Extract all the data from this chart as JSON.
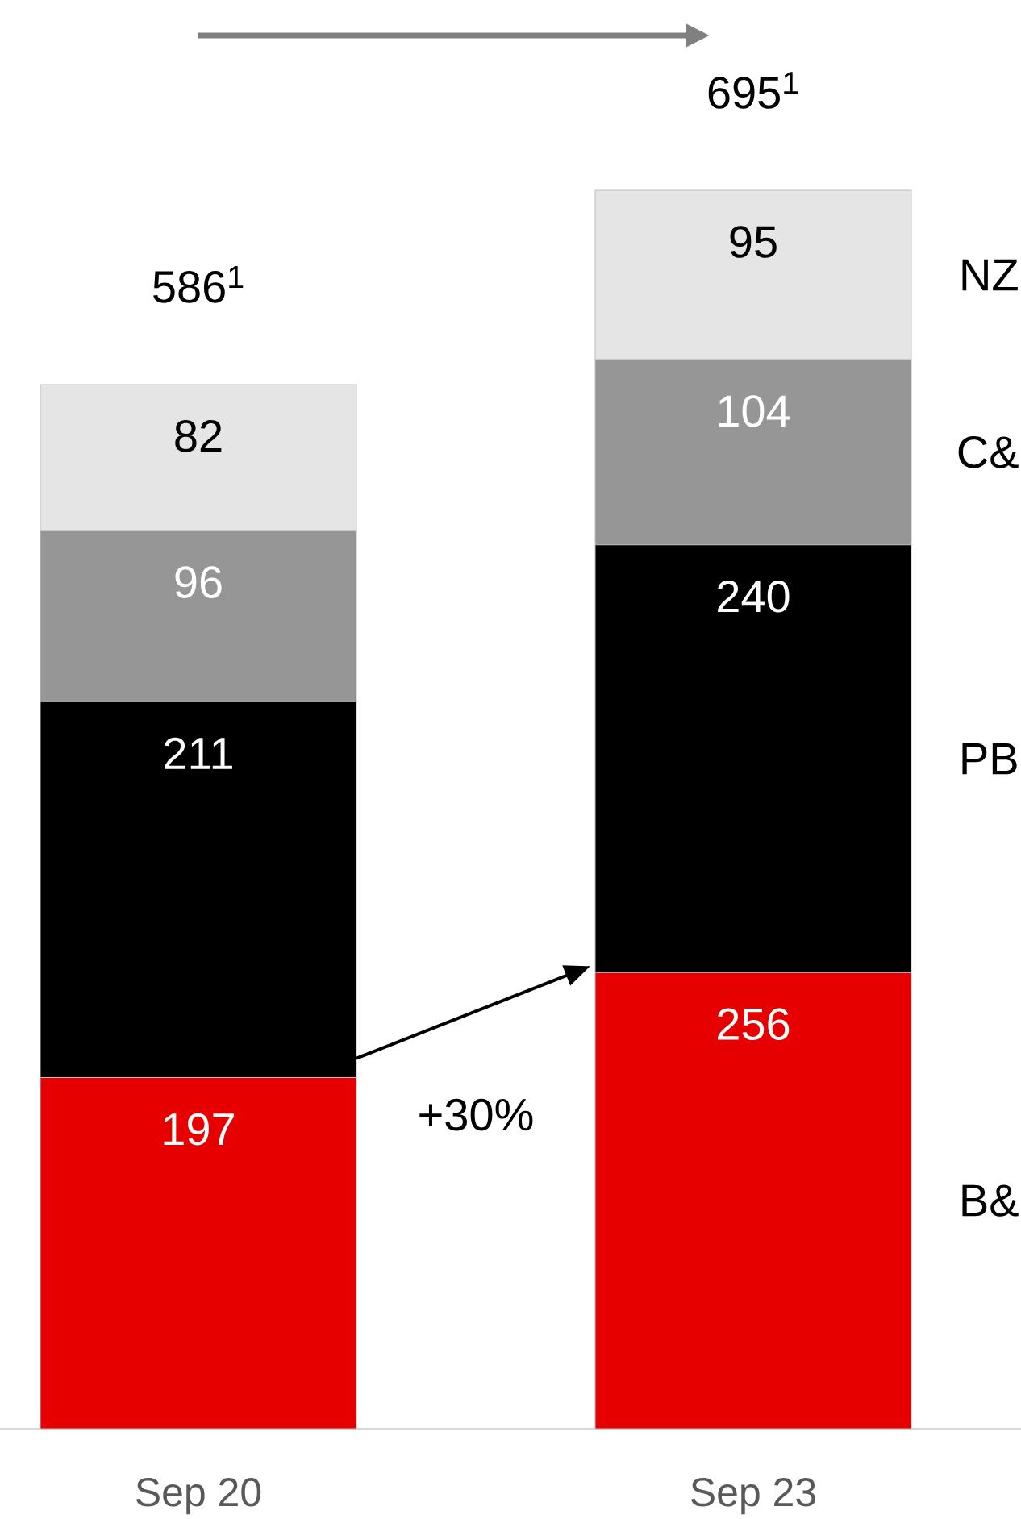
{
  "chart_data": {
    "type": "bar",
    "stacked": true,
    "categories": [
      "Sep 20",
      "Sep 23"
    ],
    "series": [
      {
        "name": "B&",
        "color": "#e60000",
        "values": [
          197,
          256
        ]
      },
      {
        "name": "PB",
        "color": "#000000",
        "values": [
          211,
          240
        ]
      },
      {
        "name": "C&",
        "color": "#969696",
        "values": [
          96,
          104
        ]
      },
      {
        "name": "NZ",
        "color": "#e5e5e5",
        "values": [
          82,
          95
        ]
      }
    ],
    "data_labels": true,
    "totals": [
      "586$^{1}$",
      "695$^{1}$"
    ],
    "annotations": [
      "+30%"
    ]
  }
}
